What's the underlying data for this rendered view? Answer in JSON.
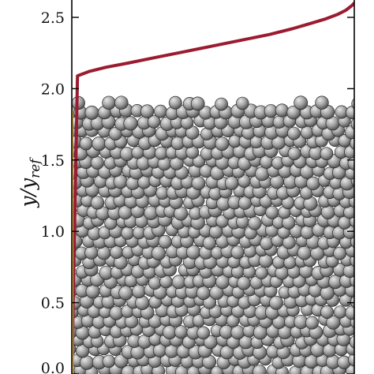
{
  "chart_data": {
    "type": "line",
    "title": "",
    "xlabel": "",
    "ylabel_main": "y/y",
    "ylabel_sub": "ref",
    "ylim": [
      0.0,
      2.6
    ],
    "y_ticks": [
      "0.0",
      "0.5",
      "1.0",
      "1.5",
      "2.0",
      "2.5"
    ],
    "y_tick_values": [
      0.0,
      0.5,
      1.0,
      1.5,
      2.0,
      2.5
    ],
    "xlim": [
      0.0,
      1.0
    ],
    "grid": false,
    "particle_bed": {
      "top": 1.93,
      "color": "#9a9a9a"
    },
    "series": [
      {
        "color": "#9b1b30",
        "x": [
          0.0,
          0.02,
          0.06,
          0.12,
          0.2,
          0.3,
          0.4,
          0.5,
          0.6,
          0.7,
          0.78,
          0.85,
          0.9,
          0.94,
          0.97,
          0.99,
          1.0
        ],
        "y": [
          0.0,
          2.09,
          2.12,
          2.15,
          2.18,
          2.22,
          2.26,
          2.3,
          2.34,
          2.38,
          2.42,
          2.46,
          2.49,
          2.52,
          2.55,
          2.58,
          2.6
        ]
      },
      {
        "color": "#e0b64a",
        "x": [
          0.002,
          0.002
        ],
        "y": [
          0.0,
          1.85
        ]
      }
    ]
  }
}
